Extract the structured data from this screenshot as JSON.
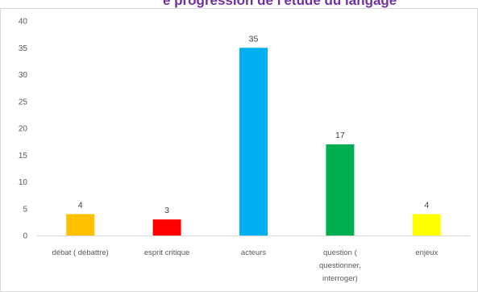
{
  "header": {
    "clipped_title": "e progression de l'étude du langage"
  },
  "chart_data": {
    "type": "bar",
    "categories": [
      [
        "débat ( débattre)"
      ],
      [
        "esprit critique"
      ],
      [
        "acteurs"
      ],
      [
        "question (",
        "questionner,",
        "interroger)"
      ],
      [
        "enjeux"
      ]
    ],
    "values": [
      4,
      3,
      35,
      17,
      4
    ],
    "colors": [
      "#ffc000",
      "#ff0000",
      "#00b0f0",
      "#00b050",
      "#ffff00"
    ],
    "ylim": [
      0,
      40
    ],
    "yticks": [
      0,
      5,
      10,
      15,
      20,
      25,
      30,
      35,
      40
    ],
    "data_labels": true,
    "grid": false,
    "title": "",
    "xlabel": "",
    "ylabel": ""
  }
}
